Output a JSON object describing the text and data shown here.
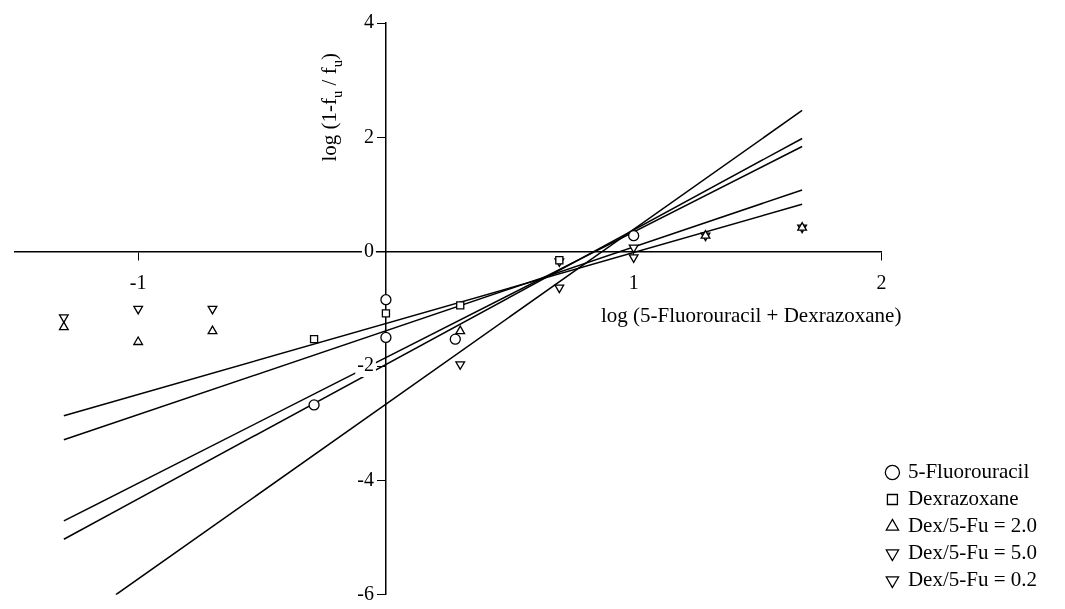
{
  "chart_data": {
    "type": "scatter",
    "xlabel": "log (5-Fluorouracil + Dexrazoxane)",
    "ylabel": "log (1-f$_{u}$ / f$_{u}$)",
    "xlim": [
      -1.5,
      2
    ],
    "ylim": [
      -6,
      4
    ],
    "xticks": [
      -1,
      1,
      2
    ],
    "yticks": [
      -6,
      -4,
      -2,
      0,
      2,
      4
    ],
    "grid": false,
    "legend": "bottom right",
    "series": [
      {
        "name": "5-Fluorouracil",
        "color": "#000000",
        "marker": "circle",
        "x": [
          -0.29,
          0,
          0,
          0.28,
          1.0
        ],
        "values": [
          -2.68,
          -1.5,
          -0.84,
          -1.53,
          0.28
        ]
      },
      {
        "name": "Dexrazoxane",
        "color": "#000000",
        "marker": "square",
        "x": [
          -0.29,
          0,
          0.3,
          0.7
        ],
        "values": [
          -1.53,
          -1.08,
          -0.94,
          -0.15
        ]
      },
      {
        "name": "Dex/5-Fu = 2.0",
        "color": "#000000",
        "marker": "triangle",
        "x": [
          -1.3,
          -1.0,
          -0.7,
          0.3,
          1.29,
          1.68
        ],
        "values": [
          -1.32,
          -1.58,
          -1.39,
          -1.39,
          0.28,
          0.42
        ]
      },
      {
        "name": "Dex/5-Fu = 5.0",
        "color": "#000000",
        "marker": "triangle-down",
        "x": [
          -1.3,
          -1.0,
          -0.7,
          0.7,
          1.0,
          1.68
        ],
        "values": [
          -1.15,
          -1.0,
          -1.0,
          -0.17,
          0.07,
          0.42
        ]
      },
      {
        "name": "Dex/5-Fu = 0.2",
        "color": "#000000",
        "marker": "triangle-down",
        "x": [
          0.3,
          0.7,
          1.0,
          1.29
        ],
        "values": [
          -1.97,
          -0.63,
          -0.1,
          0.28
        ]
      },
      {
        "type": "line",
        "color": "#000000",
        "marker": "none",
        "x": [
          -1.3,
          1.68
        ],
        "values": [
          -5.03,
          1.98
        ]
      },
      {
        "type": "line",
        "color": "#000000",
        "marker": "none",
        "x": [
          -1.3,
          1.68
        ],
        "values": [
          -2.87,
          0.83
        ]
      },
      {
        "type": "line",
        "color": "#000000",
        "marker": "none",
        "x": [
          -1.3,
          1.68
        ],
        "values": [
          -3.29,
          1.08
        ]
      },
      {
        "type": "line",
        "color": "#000000",
        "marker": "none",
        "x": [
          -1.3,
          1.68
        ],
        "values": [
          -4.71,
          1.84
        ]
      },
      {
        "type": "line",
        "color": "#000000",
        "marker": "none",
        "x": [
          -1.09,
          1.68
        ],
        "values": [
          -6.0,
          2.47
        ]
      }
    ]
  }
}
